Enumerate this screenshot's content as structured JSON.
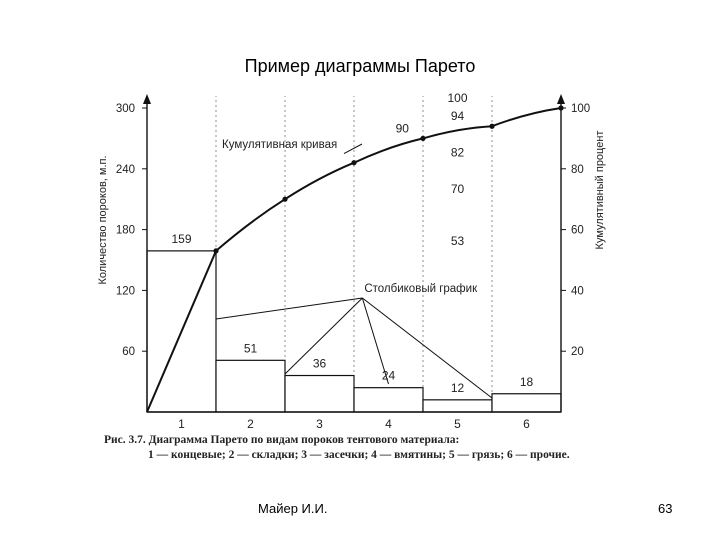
{
  "slide": {
    "title": "Пример диаграммы Парето",
    "author": "Майер И.И.",
    "page_number": "63"
  },
  "caption": {
    "line1": "Рис. 3.7. Диаграмма Парето по видам пороков тентового материала:",
    "line2": "1 — концевые; 2 — складки; 3 — засечки; 4 — вмятины; 5 — грязь; 6 — прочие."
  },
  "chart_data": {
    "type": "bar",
    "title": "",
    "categories": [
      "1",
      "2",
      "3",
      "4",
      "5",
      "6"
    ],
    "series": [
      {
        "values": [
          159,
          51,
          36,
          24,
          12,
          18
        ]
      }
    ],
    "cumulative": {
      "values": [
        53,
        70,
        82,
        90,
        94,
        100
      ],
      "labels": [
        "53",
        "70",
        "82",
        "90",
        "94",
        "100"
      ],
      "color": "#111111"
    },
    "ylabel": "Количество пороков, м.п.",
    "y2label": "Кумулятивный процент",
    "ylim": [
      0,
      300
    ],
    "y2lim": [
      0,
      100
    ],
    "yticks": [
      60,
      120,
      180,
      240,
      300
    ],
    "y2ticks": [
      20,
      40,
      60,
      80,
      100
    ],
    "annotations": {
      "cumulative_curve": "Кумулятивная кривая",
      "bar_graph": "Столбиковый график"
    },
    "grid": "dashed vertical lines",
    "bar_color": "#ffffff",
    "line_color": "#111111"
  }
}
